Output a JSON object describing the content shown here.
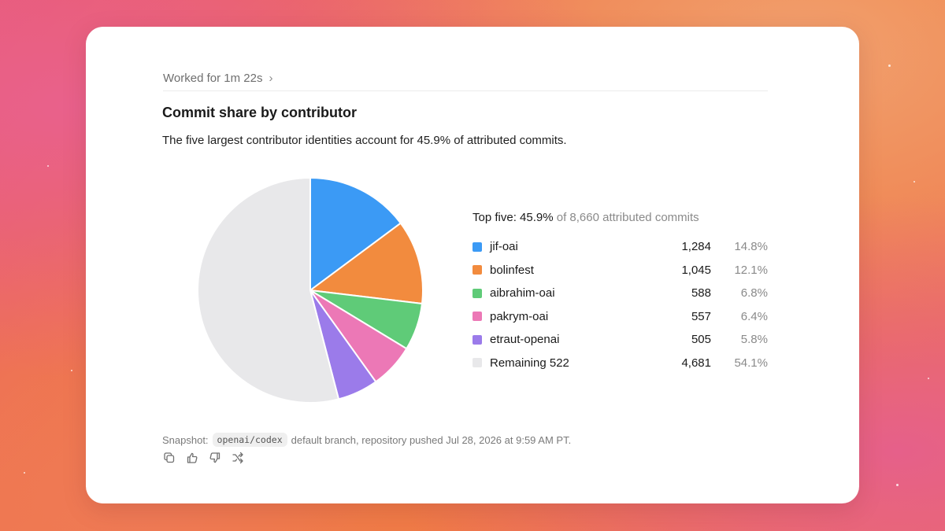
{
  "header": {
    "worked_label": "Worked for 1m 22s"
  },
  "title": "Commit share by contributor",
  "subtitle": "The five largest contributor identities account for 45.9% of attributed commits.",
  "legend": {
    "head_strong": "Top five: 45.9%",
    "head_rest": " of 8,660 attributed commits"
  },
  "chart_data": {
    "type": "pie",
    "total": 8660,
    "slices": [
      {
        "label": "jif-oai",
        "count": "1,284",
        "value": 1284,
        "pct": "14.8%",
        "color": "#3b9af5"
      },
      {
        "label": "bolinfest",
        "count": "1,045",
        "value": 1045,
        "pct": "12.1%",
        "color": "#f28b3e"
      },
      {
        "label": "aibrahim-oai",
        "count": "588",
        "value": 588,
        "pct": "6.8%",
        "color": "#5fcb78"
      },
      {
        "label": "pakrym-oai",
        "count": "557",
        "value": 557,
        "pct": "6.4%",
        "color": "#ec78b6"
      },
      {
        "label": "etraut-openai",
        "count": "505",
        "value": 505,
        "pct": "5.8%",
        "color": "#9b7bea"
      },
      {
        "label": "Remaining 522",
        "count": "4,681",
        "value": 4681,
        "pct": "54.1%",
        "color": "#e8e8ea"
      }
    ]
  },
  "footer": {
    "prefix": "Snapshot:",
    "repo": "openai/codex",
    "suffix": "default branch, repository pushed Jul 28, 2026 at 9:59 AM PT."
  },
  "actions": [
    "copy-icon",
    "thumbs-up-icon",
    "thumbs-down-icon",
    "share-icon"
  ]
}
